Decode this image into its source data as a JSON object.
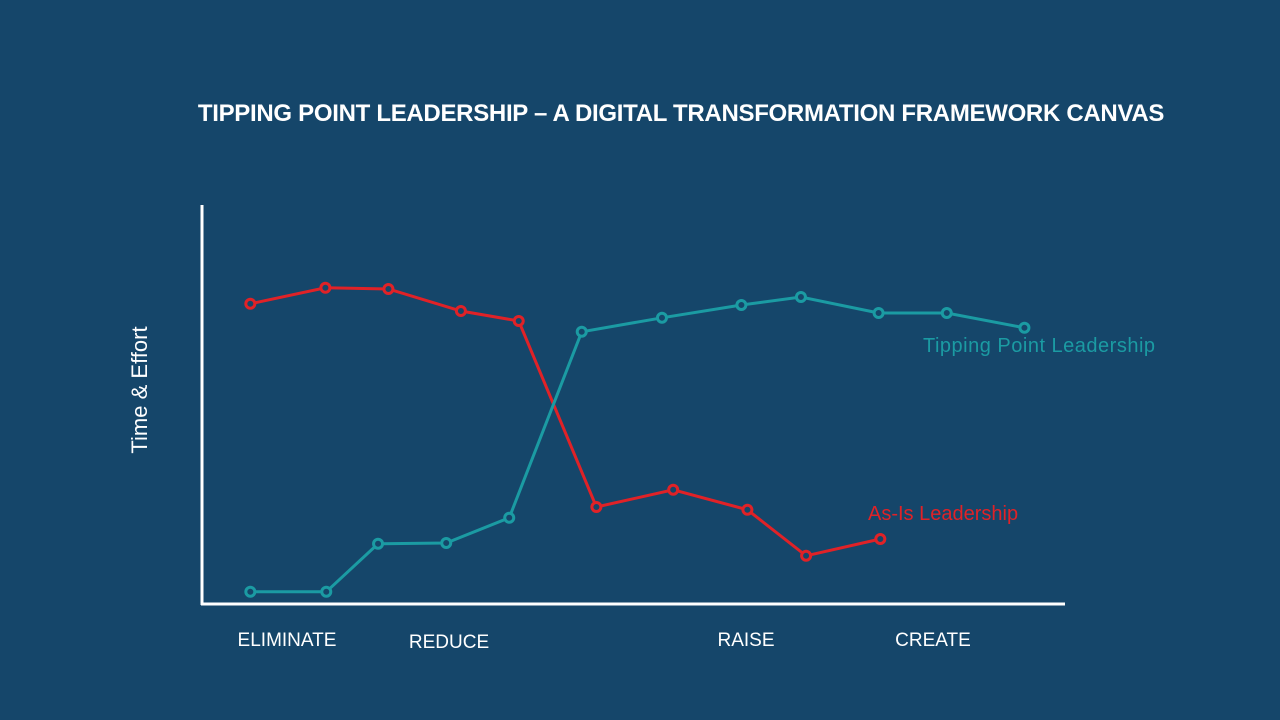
{
  "chart_data": {
    "type": "line",
    "title": "TIPPING POINT LEADERSHIP – A DIGITAL TRANSFORMATION FRAMEWORK CANVAS",
    "xlabel": "",
    "ylabel": "Time & Effort",
    "categories": [
      "ELIMINATE",
      "REDUCE",
      "RAISE",
      "CREATE"
    ],
    "category_x": [
      10,
      28.7,
      63.3,
      85
    ],
    "xlim": [
      0,
      100
    ],
    "ylim": [
      0,
      100
    ],
    "grid": false,
    "series": [
      {
        "name": "As-Is Leadership",
        "color": "#e02227",
        "x": [
          5.6,
          14.3,
          21.6,
          30.0,
          36.7,
          45.7,
          54.6,
          63.2,
          70.0,
          78.6
        ],
        "y": [
          75.3,
          79.3,
          79.0,
          73.5,
          71.0,
          24.5,
          28.8,
          23.8,
          12.3,
          16.5
        ]
      },
      {
        "name": "Tipping Point Leadership",
        "color": "#1b9ba3",
        "x": [
          5.6,
          14.4,
          20.4,
          28.3,
          35.6,
          44.0,
          53.3,
          62.5,
          69.4,
          78.4,
          86.3,
          95.3
        ],
        "y": [
          3.3,
          3.3,
          15.3,
          15.5,
          21.8,
          68.3,
          71.8,
          75.0,
          77.0,
          73.0,
          73.0,
          69.3
        ]
      }
    ]
  },
  "colors": {
    "background": "#15466a",
    "axis": "#ffffff"
  }
}
